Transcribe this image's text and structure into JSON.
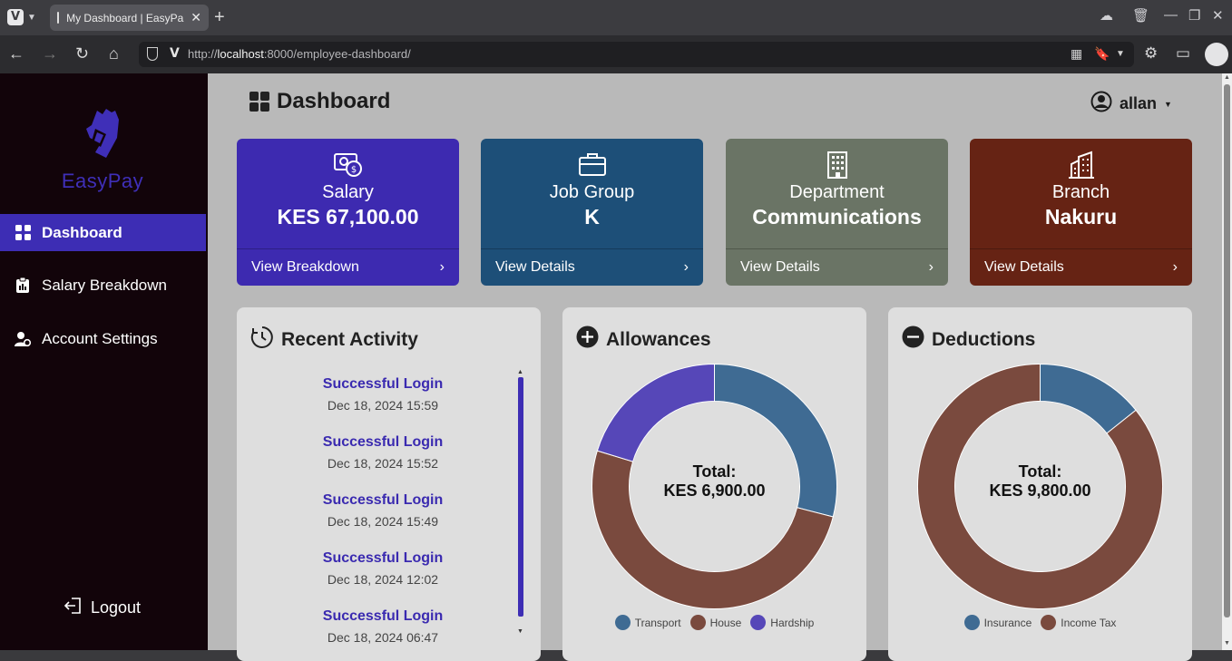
{
  "browser": {
    "tab_title": "My Dashboard | EasyPa",
    "url_prefix": "http://",
    "url_host": "localhost",
    "url_rest": ":8000/employee-dashboard/"
  },
  "sidebar": {
    "brand": "EasyPay",
    "items": [
      {
        "label": "Dashboard",
        "icon": "grid-icon"
      },
      {
        "label": "Salary Breakdown",
        "icon": "clipboard-icon"
      },
      {
        "label": "Account Settings",
        "icon": "user-gear-icon"
      }
    ],
    "logout": "Logout"
  },
  "header": {
    "title": "Dashboard",
    "user": "allan"
  },
  "cards": [
    {
      "label": "Salary",
      "value": "KES 67,100.00",
      "link": "View Breakdown",
      "color": "#3d2ab0",
      "icon": "money-icon"
    },
    {
      "label": "Job Group",
      "value": "K",
      "link": "View Details",
      "color": "#1d4f78",
      "icon": "briefcase-icon"
    },
    {
      "label": "Department",
      "value": "Communications",
      "link": "View Details",
      "color": "#6a7465",
      "icon": "building-icon"
    },
    {
      "label": "Branch",
      "value": "Nakuru",
      "link": "View Details",
      "color": "#662314",
      "icon": "city-icon"
    }
  ],
  "recent_activity": {
    "title": "Recent Activity",
    "items": [
      {
        "title": "Successful Login",
        "time": "Dec 18, 2024 15:59"
      },
      {
        "title": "Successful Login",
        "time": "Dec 18, 2024 15:52"
      },
      {
        "title": "Successful Login",
        "time": "Dec 18, 2024 15:49"
      },
      {
        "title": "Successful Login",
        "time": "Dec 18, 2024 12:02"
      },
      {
        "title": "Successful Login",
        "time": "Dec 18, 2024 06:47"
      }
    ]
  },
  "allowances": {
    "title": "Allowances",
    "total_label": "Total:",
    "total_value": "KES 6,900.00"
  },
  "deductions": {
    "title": "Deductions",
    "total_label": "Total:",
    "total_value": "KES 9,800.00"
  },
  "chart_data": [
    {
      "type": "pie",
      "title": "Allowances",
      "categories": [
        "Transport",
        "House",
        "Hardship"
      ],
      "values": [
        2000,
        3500,
        1400
      ],
      "colors": [
        "#3f6b93",
        "#7a4a3e",
        "#5647b8"
      ]
    },
    {
      "type": "pie",
      "title": "Deductions",
      "categories": [
        "Insurance",
        "Income Tax"
      ],
      "values": [
        1400,
        8400
      ],
      "colors": [
        "#3f6b93",
        "#7a4a3e"
      ]
    }
  ]
}
